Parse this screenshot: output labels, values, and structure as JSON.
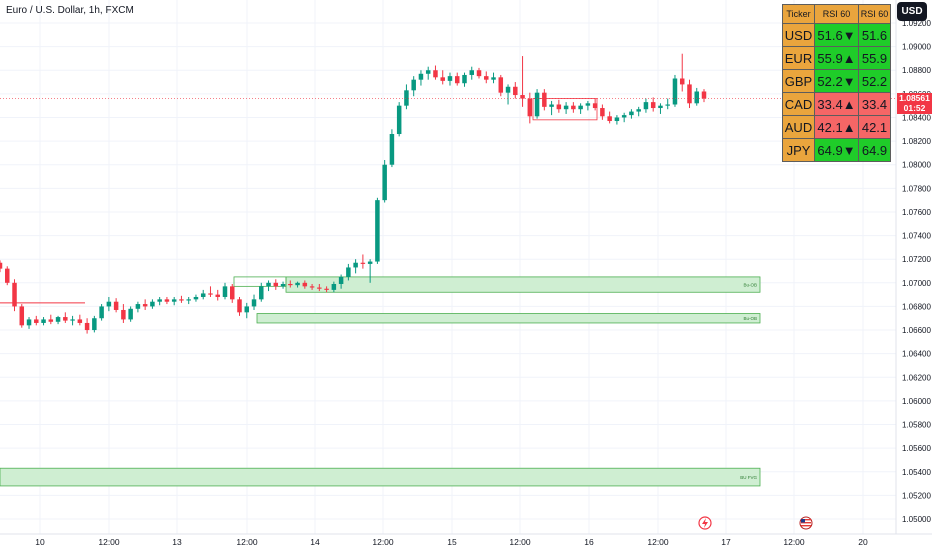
{
  "header": {
    "title": "Euro / U.S. Dollar, 1h, FXCM",
    "currency_button": "USD"
  },
  "last_price": {
    "price": "1.08561",
    "countdown": "01:52"
  },
  "rsi_table": {
    "headers": [
      "Ticker",
      "RSI 60",
      "RSI 60"
    ],
    "rows": [
      {
        "ticker": "USD",
        "value": "51.6▼",
        "value2": "51.6",
        "color": "up"
      },
      {
        "ticker": "EUR",
        "value": "55.9▲",
        "value2": "55.9",
        "color": "up"
      },
      {
        "ticker": "GBP",
        "value": "52.2▼",
        "value2": "52.2",
        "color": "up"
      },
      {
        "ticker": "CAD",
        "value": "33.4▲",
        "value2": "33.4",
        "color": "dn"
      },
      {
        "ticker": "AUD",
        "value": "42.1▲",
        "value2": "42.1",
        "color": "dn"
      },
      {
        "ticker": "JPY",
        "value": "64.9▼",
        "value2": "64.9",
        "color": "up"
      }
    ]
  },
  "colors": {
    "up": "#089981",
    "down": "#f23645",
    "zone_fill": "#cfeed2",
    "zone_stroke": "#4caf50",
    "grid": "#f0f3fa"
  },
  "chart_data": {
    "type": "candlestick",
    "title": "Euro / U.S. Dollar, 1h, FXCM",
    "ylim": [
      1.0492,
      1.0932
    ],
    "y_ticks": [
      "1.09200",
      "1.09000",
      "1.08800",
      "1.08600",
      "1.08400",
      "1.08200",
      "1.08000",
      "1.07800",
      "1.07600",
      "1.07400",
      "1.07200",
      "1.07000",
      "1.06800",
      "1.06600",
      "1.06400",
      "1.06200",
      "1.06000",
      "1.05800",
      "1.05600",
      "1.05400",
      "1.05200",
      "1.05000"
    ],
    "x_ticks": [
      "10",
      "12:00",
      "13",
      "12:00",
      "14",
      "12:00",
      "15",
      "12:00",
      "16",
      "12:00",
      "17",
      "12:00",
      "20"
    ],
    "last_price": 1.08561,
    "zones": [
      {
        "label": "Bu-OB",
        "top": 1.0705,
        "bottom": 1.0692
      },
      {
        "label": "Bu-OB",
        "top": 1.0674,
        "bottom": 1.0666
      },
      {
        "label": "BU FVG",
        "top": 1.0543,
        "bottom": 1.0528
      }
    ],
    "candles": [
      [
        1.0717,
        1.0719,
        1.0709,
        1.0712
      ],
      [
        1.0712,
        1.0714,
        1.0698,
        1.07
      ],
      [
        1.07,
        1.0703,
        1.0676,
        1.068
      ],
      [
        1.068,
        1.0682,
        1.0662,
        1.0664
      ],
      [
        1.0664,
        1.0671,
        1.0661,
        1.0669
      ],
      [
        1.0669,
        1.0672,
        1.0664,
        1.0666
      ],
      [
        1.0666,
        1.0671,
        1.0664,
        1.0669
      ],
      [
        1.0669,
        1.0673,
        1.0665,
        1.0667
      ],
      [
        1.0667,
        1.0672,
        1.0665,
        1.0671
      ],
      [
        1.0671,
        1.0675,
        1.0666,
        1.0668
      ],
      [
        1.0668,
        1.0672,
        1.0664,
        1.0669
      ],
      [
        1.0669,
        1.0673,
        1.0664,
        1.0666
      ],
      [
        1.0666,
        1.067,
        1.0657,
        1.066
      ],
      [
        1.066,
        1.0672,
        1.0658,
        1.067
      ],
      [
        1.067,
        1.0682,
        1.0668,
        1.068
      ],
      [
        1.068,
        1.0688,
        1.0676,
        1.0684
      ],
      [
        1.0684,
        1.0687,
        1.0675,
        1.0677
      ],
      [
        1.0677,
        1.0682,
        1.0666,
        1.0669
      ],
      [
        1.0669,
        1.068,
        1.0667,
        1.0678
      ],
      [
        1.0678,
        1.0684,
        1.0675,
        1.0682
      ],
      [
        1.0682,
        1.0686,
        1.0677,
        1.068
      ],
      [
        1.068,
        1.0686,
        1.0678,
        1.0684
      ],
      [
        1.0684,
        1.0688,
        1.0681,
        1.0686
      ],
      [
        1.0686,
        1.0688,
        1.0682,
        1.0684
      ],
      [
        1.0684,
        1.0688,
        1.0681,
        1.0686
      ],
      [
        1.0686,
        1.0689,
        1.0683,
        1.0685
      ],
      [
        1.0685,
        1.0688,
        1.0682,
        1.0686
      ],
      [
        1.0686,
        1.069,
        1.0684,
        1.0688
      ],
      [
        1.0688,
        1.0694,
        1.0686,
        1.0691
      ],
      [
        1.0691,
        1.0697,
        1.0688,
        1.069
      ],
      [
        1.069,
        1.0694,
        1.0685,
        1.0688
      ],
      [
        1.0688,
        1.07,
        1.0686,
        1.0697
      ],
      [
        1.0697,
        1.0699,
        1.0683,
        1.0686
      ],
      [
        1.0686,
        1.0688,
        1.0672,
        1.0675
      ],
      [
        1.0675,
        1.0683,
        1.067,
        1.068
      ],
      [
        1.068,
        1.069,
        1.0677,
        1.0686
      ],
      [
        1.0686,
        1.07,
        1.0684,
        1.0697
      ],
      [
        1.0697,
        1.0702,
        1.0693,
        1.07
      ],
      [
        1.07,
        1.0703,
        1.0694,
        1.0697
      ],
      [
        1.0697,
        1.0701,
        1.0695,
        1.0699
      ],
      [
        1.0699,
        1.0702,
        1.0696,
        1.0698
      ],
      [
        1.0698,
        1.0701,
        1.0696,
        1.07
      ],
      [
        1.07,
        1.0702,
        1.0695,
        1.0697
      ],
      [
        1.0697,
        1.0699,
        1.0694,
        1.0696
      ],
      [
        1.0696,
        1.0699,
        1.0693,
        1.0695
      ],
      [
        1.0695,
        1.0697,
        1.0692,
        1.0694
      ],
      [
        1.0694,
        1.0701,
        1.0692,
        1.0699
      ],
      [
        1.0699,
        1.0707,
        1.0695,
        1.0705
      ],
      [
        1.0705,
        1.0716,
        1.0702,
        1.0713
      ],
      [
        1.0713,
        1.072,
        1.0708,
        1.0717
      ],
      [
        1.0717,
        1.0724,
        1.0712,
        1.0716
      ],
      [
        1.0716,
        1.072,
        1.07,
        1.0718
      ],
      [
        1.0718,
        1.0772,
        1.0716,
        1.077
      ],
      [
        1.077,
        1.0804,
        1.0768,
        1.08
      ],
      [
        1.08,
        1.083,
        1.0798,
        1.0826
      ],
      [
        1.0826,
        1.0853,
        1.0824,
        1.085
      ],
      [
        1.085,
        1.0868,
        1.0847,
        1.0863
      ],
      [
        1.0863,
        1.0875,
        1.0858,
        1.0872
      ],
      [
        1.0872,
        1.088,
        1.0867,
        1.0877
      ],
      [
        1.0877,
        1.0883,
        1.0872,
        1.088
      ],
      [
        1.088,
        1.0884,
        1.0872,
        1.0874
      ],
      [
        1.0874,
        1.088,
        1.0868,
        1.0871
      ],
      [
        1.0871,
        1.0878,
        1.0867,
        1.0875
      ],
      [
        1.0875,
        1.0878,
        1.0867,
        1.0869
      ],
      [
        1.0869,
        1.0878,
        1.0866,
        1.0876
      ],
      [
        1.0876,
        1.0883,
        1.0872,
        1.088
      ],
      [
        1.088,
        1.0882,
        1.0873,
        1.0875
      ],
      [
        1.0875,
        1.0879,
        1.0869,
        1.0872
      ],
      [
        1.0872,
        1.0878,
        1.0869,
        1.0874
      ],
      [
        1.0874,
        1.0876,
        1.0858,
        1.0861
      ],
      [
        1.0861,
        1.0868,
        1.0851,
        1.0866
      ],
      [
        1.0866,
        1.087,
        1.0856,
        1.0859
      ],
      [
        1.0859,
        1.0892,
        1.0849,
        1.0856
      ],
      [
        1.0856,
        1.0861,
        1.0835,
        1.0841
      ],
      [
        1.0841,
        1.0864,
        1.0839,
        1.0861
      ],
      [
        1.0861,
        1.0864,
        1.0846,
        1.0849
      ],
      [
        1.0849,
        1.0854,
        1.0842,
        1.0851
      ],
      [
        1.0851,
        1.0855,
        1.0844,
        1.0847
      ],
      [
        1.0847,
        1.0853,
        1.0843,
        1.085
      ],
      [
        1.085,
        1.0853,
        1.0844,
        1.0847
      ],
      [
        1.0847,
        1.0852,
        1.0843,
        1.085
      ],
      [
        1.085,
        1.0854,
        1.0846,
        1.0852
      ],
      [
        1.0852,
        1.0856,
        1.0846,
        1.0848
      ],
      [
        1.0848,
        1.0851,
        1.0838,
        1.0841
      ],
      [
        1.0841,
        1.0845,
        1.0835,
        1.0837
      ],
      [
        1.0837,
        1.0842,
        1.0834,
        1.084
      ],
      [
        1.084,
        1.0844,
        1.0836,
        1.0842
      ],
      [
        1.0842,
        1.0847,
        1.0839,
        1.0845
      ],
      [
        1.0845,
        1.0849,
        1.0841,
        1.0847
      ],
      [
        1.0847,
        1.0856,
        1.0844,
        1.0853
      ],
      [
        1.0853,
        1.0857,
        1.0845,
        1.0848
      ],
      [
        1.0848,
        1.0852,
        1.0843,
        1.085
      ],
      [
        1.085,
        1.0856,
        1.0847,
        1.0851
      ],
      [
        1.0851,
        1.0876,
        1.0849,
        1.0873
      ],
      [
        1.0873,
        1.0894,
        1.0862,
        1.0868
      ],
      [
        1.0868,
        1.0872,
        1.0848,
        1.0852
      ],
      [
        1.0852,
        1.0865,
        1.085,
        1.0862
      ],
      [
        1.0862,
        1.0864,
        1.0853,
        1.0856
      ]
    ]
  }
}
